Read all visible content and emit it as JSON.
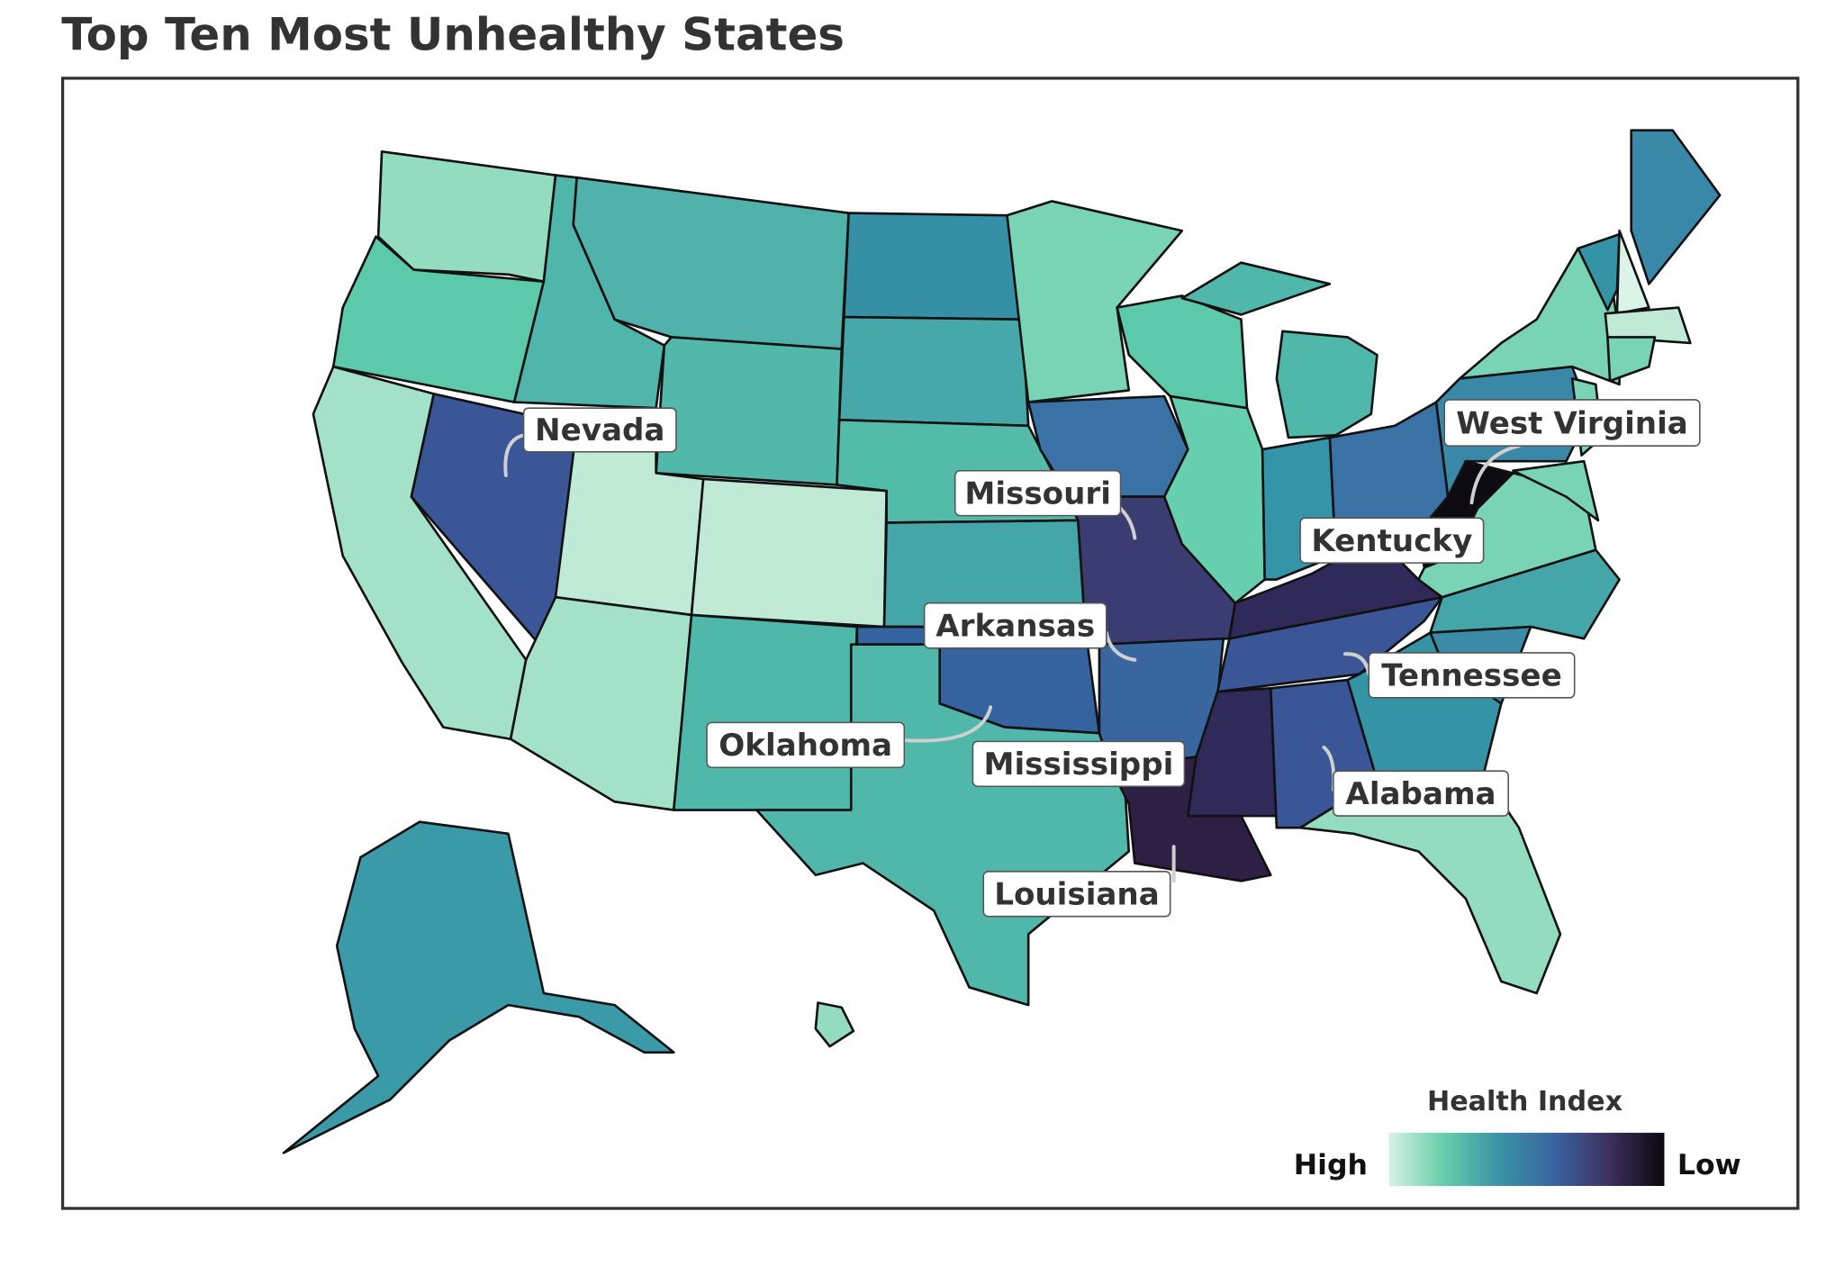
{
  "title": "Top Ten Most Unhealthy States",
  "legend": {
    "title": "Health Index",
    "high_label": "High",
    "low_label": "Low",
    "gradient": [
      "#d6f2e3",
      "#66cdaa",
      "#3a93a6",
      "#3a64a0",
      "#3d2f5e",
      "#0c080e"
    ]
  },
  "states": [
    {
      "name": "Washington",
      "color": "#93dcc0"
    },
    {
      "name": "Oregon",
      "color": "#5ccaaa"
    },
    {
      "name": "California",
      "color": "#a3e2c8"
    },
    {
      "name": "Nevada",
      "color": "#3a5696"
    },
    {
      "name": "Idaho",
      "color": "#50b5aa"
    },
    {
      "name": "Montana",
      "color": "#50b2aa"
    },
    {
      "name": "Wyoming",
      "color": "#52b8aa"
    },
    {
      "name": "Utah",
      "color": "#bfead6"
    },
    {
      "name": "Colorado",
      "color": "#c0ead6"
    },
    {
      "name": "Arizona",
      "color": "#a3e2c8"
    },
    {
      "name": "New Mexico",
      "color": "#50b8aa"
    },
    {
      "name": "North Dakota",
      "color": "#3590a5"
    },
    {
      "name": "South Dakota",
      "color": "#46a8a8"
    },
    {
      "name": "Nebraska",
      "color": "#52bca9"
    },
    {
      "name": "Kansas",
      "color": "#44a6a8"
    },
    {
      "name": "Oklahoma",
      "color": "#3563a0"
    },
    {
      "name": "Texas",
      "color": "#50b8aa"
    },
    {
      "name": "Minnesota",
      "color": "#79d3b5"
    },
    {
      "name": "Iowa",
      "color": "#3a72a5"
    },
    {
      "name": "Missouri",
      "color": "#3a3c72"
    },
    {
      "name": "Arkansas",
      "color": "#3a66a0"
    },
    {
      "name": "Louisiana",
      "color": "#2e1f45"
    },
    {
      "name": "Mississippi",
      "color": "#302a5a"
    },
    {
      "name": "Alabama",
      "color": "#3a5696"
    },
    {
      "name": "Tennessee",
      "color": "#3a5696"
    },
    {
      "name": "Kentucky",
      "color": "#302a5a"
    },
    {
      "name": "Wisconsin",
      "color": "#5ccaaa"
    },
    {
      "name": "Illinois",
      "color": "#66cfae"
    },
    {
      "name": "Indiana",
      "color": "#3595a8"
    },
    {
      "name": "Michigan",
      "color": "#50b8aa"
    },
    {
      "name": "Ohio",
      "color": "#3a72a5"
    },
    {
      "name": "West Virginia",
      "color": "#0e0a12"
    },
    {
      "name": "Virginia",
      "color": "#79d3b5"
    },
    {
      "name": "North Carolina",
      "color": "#44a6a8"
    },
    {
      "name": "South Carolina",
      "color": "#3a8aa8"
    },
    {
      "name": "Georgia",
      "color": "#3593a6"
    },
    {
      "name": "Florida",
      "color": "#93dcc0"
    },
    {
      "name": "Pennsylvania",
      "color": "#3a88a8"
    },
    {
      "name": "New York",
      "color": "#79d3b5"
    },
    {
      "name": "Vermont",
      "color": "#3593a6"
    },
    {
      "name": "New Hampshire",
      "color": "#dcf3e8"
    },
    {
      "name": "Maine",
      "color": "#3a88a8"
    },
    {
      "name": "Massachusetts",
      "color": "#c0ead6"
    },
    {
      "name": "Connecticut",
      "color": "#79d3b5"
    },
    {
      "name": "New Jersey",
      "color": "#79d3b5"
    },
    {
      "name": "Maryland",
      "color": "#79d3b5"
    },
    {
      "name": "Alaska",
      "color": "#3a9aa8"
    },
    {
      "name": "Hawaii",
      "color": "#93dcc0"
    }
  ],
  "labels": [
    "Nevada",
    "Missouri",
    "West Virginia",
    "Kentucky",
    "Arkansas",
    "Tennessee",
    "Oklahoma",
    "Mississippi",
    "Alabama",
    "Louisiana"
  ]
}
